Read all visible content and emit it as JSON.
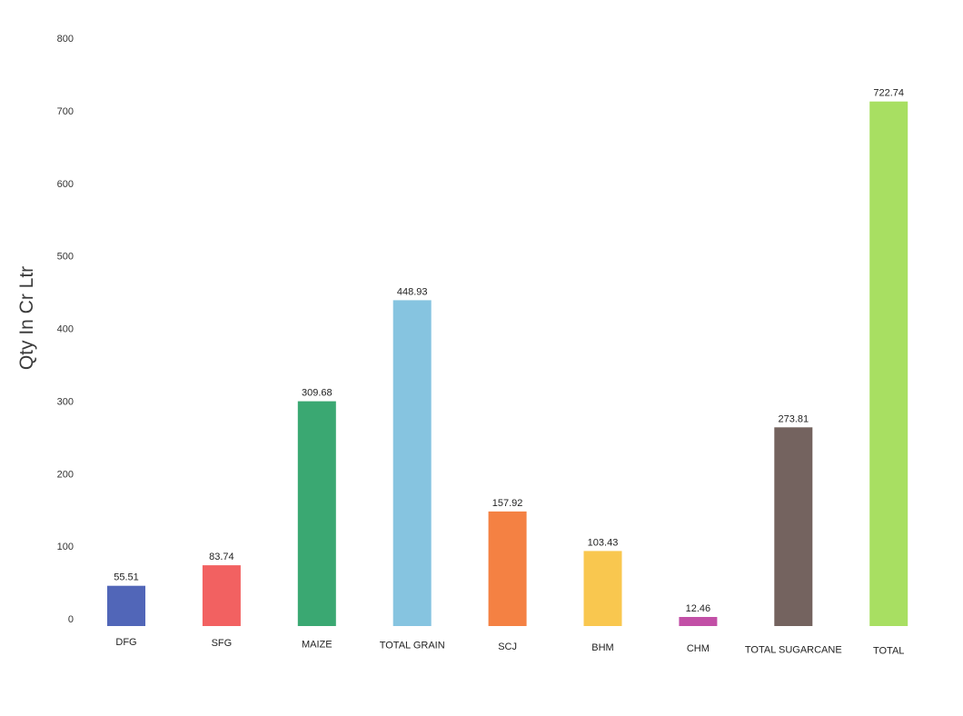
{
  "chart_data": {
    "type": "bar",
    "title": "",
    "xlabel": "",
    "ylabel": "Qty In Cr Ltr",
    "ylim": [
      0,
      800
    ],
    "yticks": [
      0,
      100,
      200,
      300,
      400,
      500,
      600,
      700,
      800
    ],
    "grid": false,
    "legend": "none",
    "categories": [
      "DFG",
      "SFG",
      "MAIZE",
      "TOTAL GRAIN",
      "SCJ",
      "BHM",
      "CHM",
      "TOTAL SUGARCANE",
      "TOTAL"
    ],
    "values": [
      55.51,
      83.74,
      309.68,
      448.93,
      157.92,
      103.43,
      12.46,
      273.81,
      722.74
    ],
    "value_labels": [
      "55.51",
      "83.74",
      "309.68",
      "448.93",
      "157.92",
      "103.43",
      "12.46",
      "273.81",
      "722.74"
    ],
    "colors": [
      "#5166b8",
      "#f26161",
      "#3aa872",
      "#86c4e0",
      "#f48143",
      "#f9c74f",
      "#c24fa6",
      "#74635f",
      "#a8df62"
    ]
  }
}
